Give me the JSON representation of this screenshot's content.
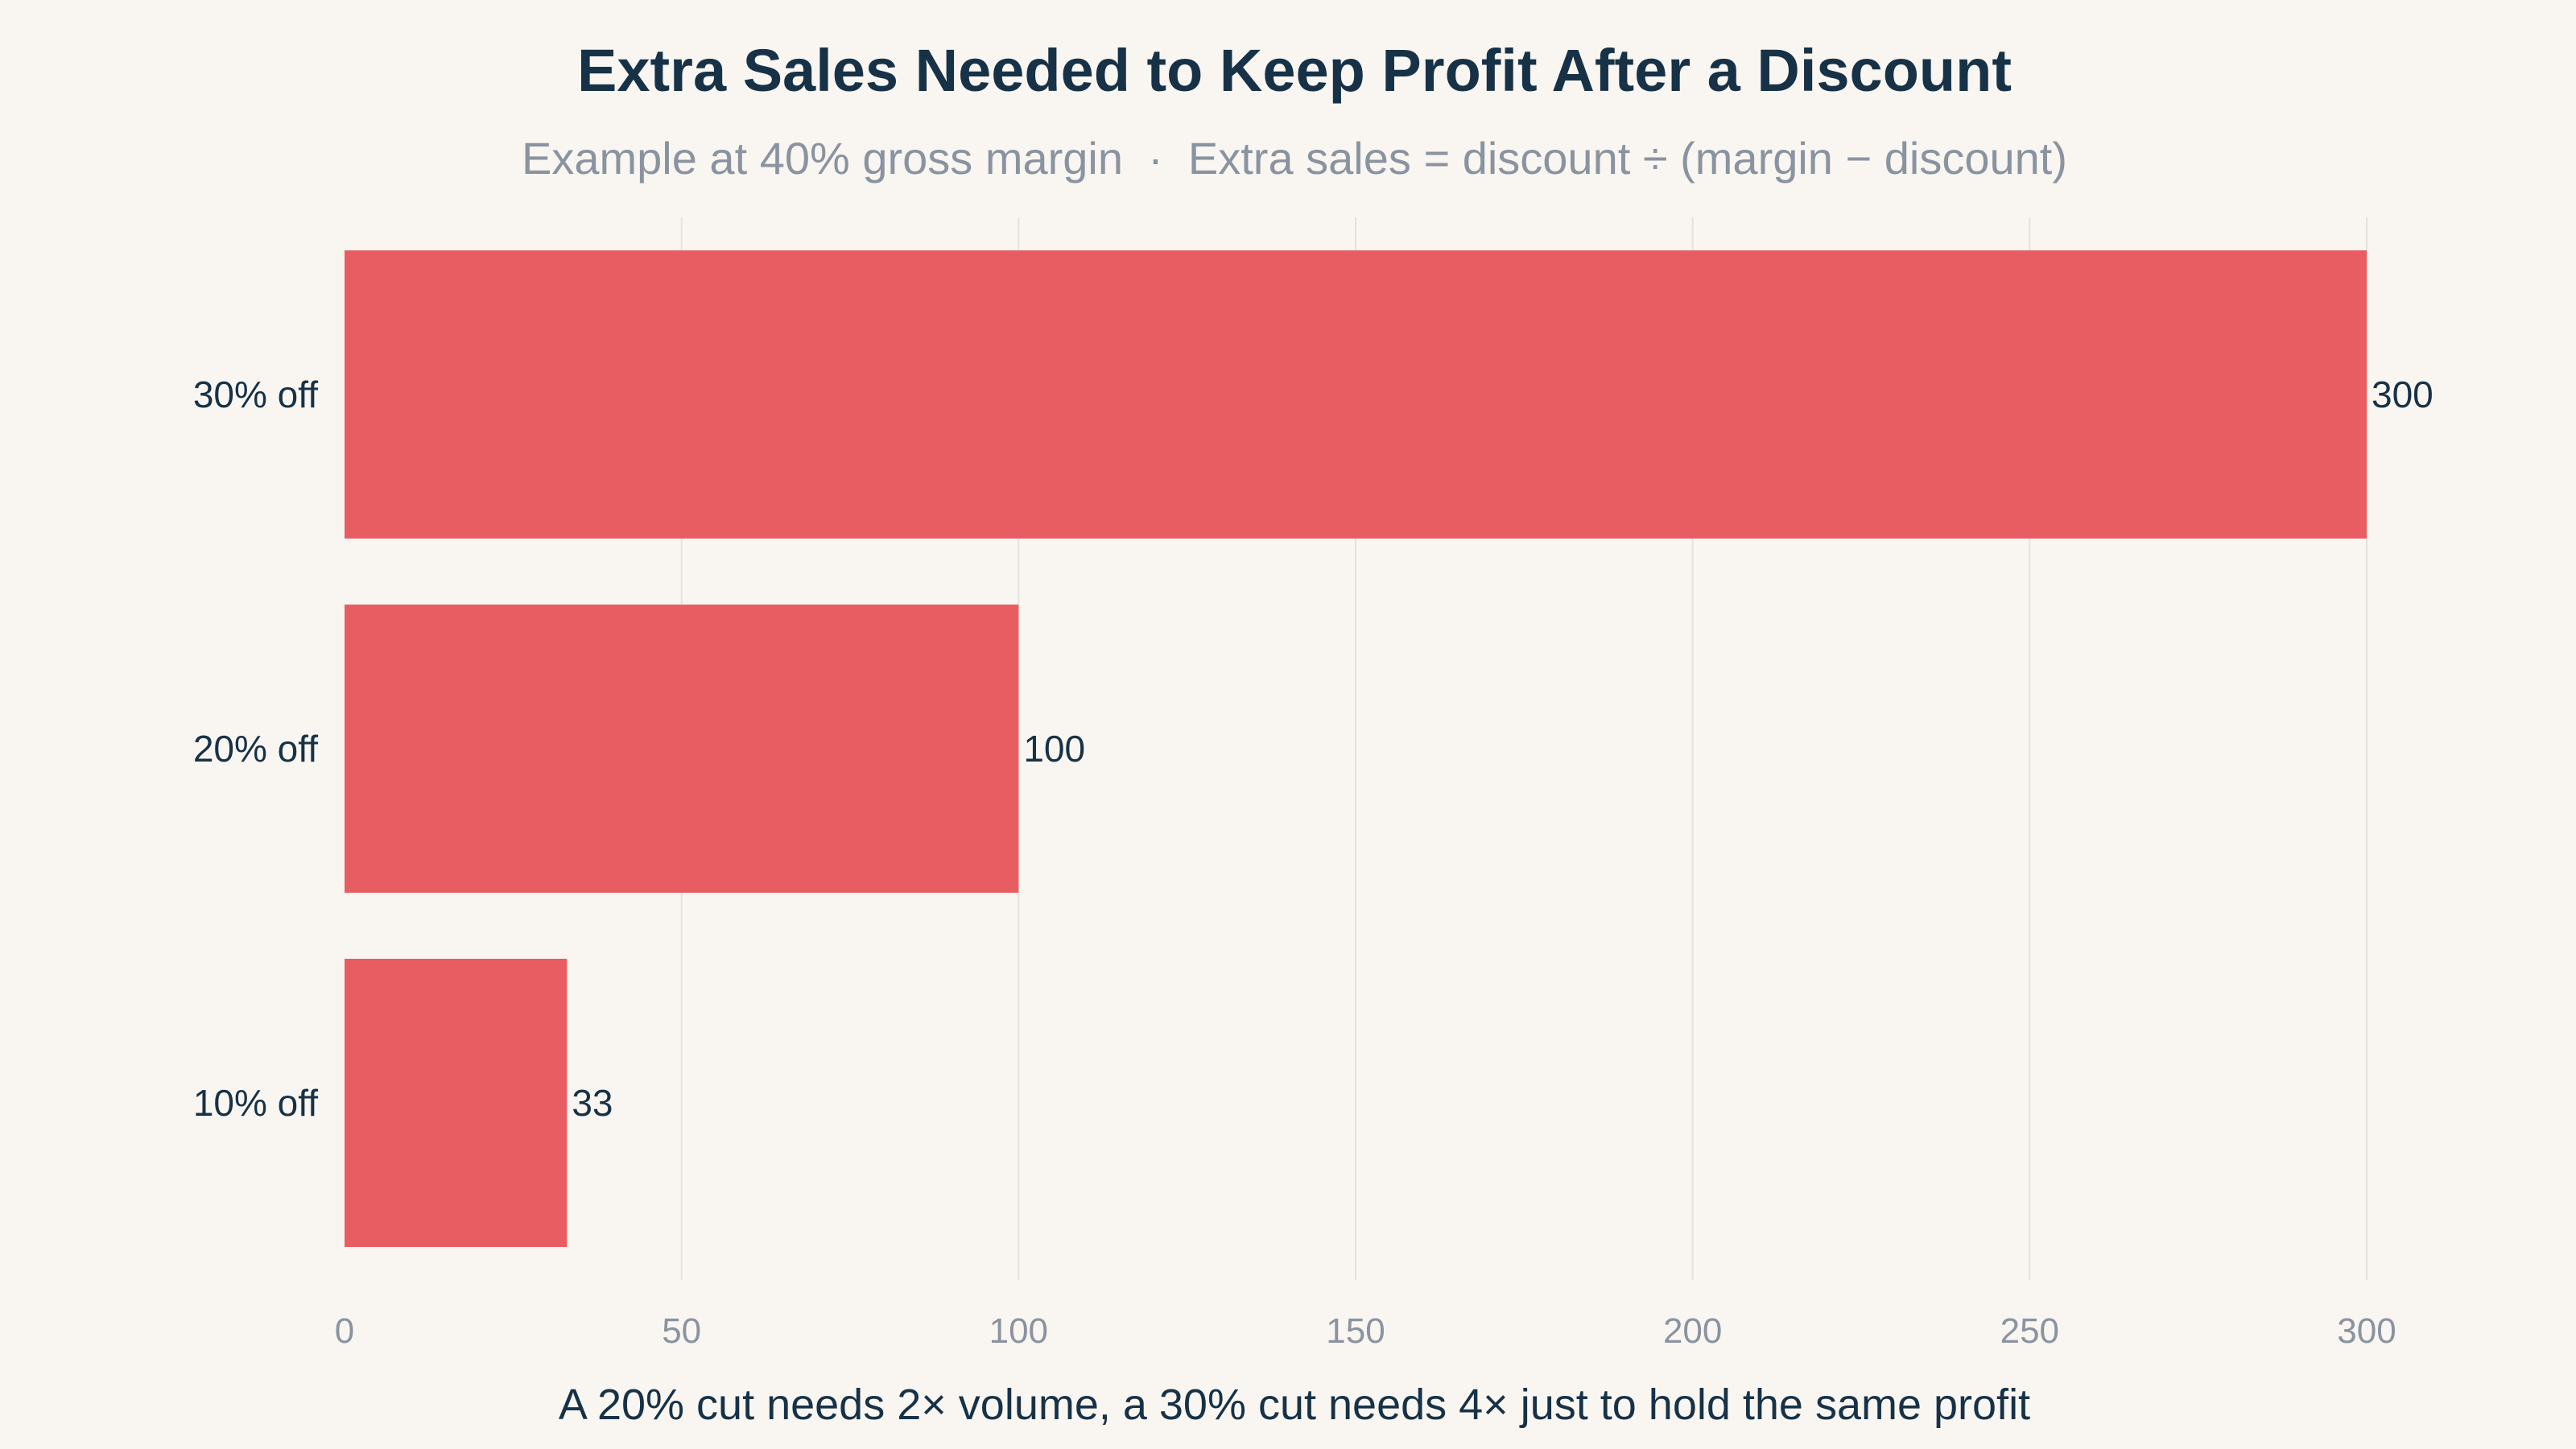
{
  "chart_data": {
    "type": "bar",
    "orientation": "horizontal",
    "title": "Extra Sales Needed to Keep Profit After a Discount",
    "subtitle": "Example at 40% gross margin  ·  Extra sales = discount ÷ (margin − discount)",
    "categories": [
      "30% off",
      "20% off",
      "10% off"
    ],
    "values": [
      300,
      100,
      33
    ],
    "xlabel": "A 20% cut needs 2× volume, a 30% cut needs 4× just to hold the same profit",
    "ylabel": "",
    "xlim": [
      0,
      300
    ],
    "xticks": [
      0,
      50,
      100,
      150,
      200,
      250,
      300
    ],
    "grid": true,
    "legend": "none"
  },
  "colors": {
    "bar": "#e85d61",
    "title": "#173247",
    "subtitle": "#8a93a0",
    "tick": "#8a93a0",
    "label": "#173247",
    "grid": "#e4e2de",
    "background": "#f9f6f2"
  }
}
